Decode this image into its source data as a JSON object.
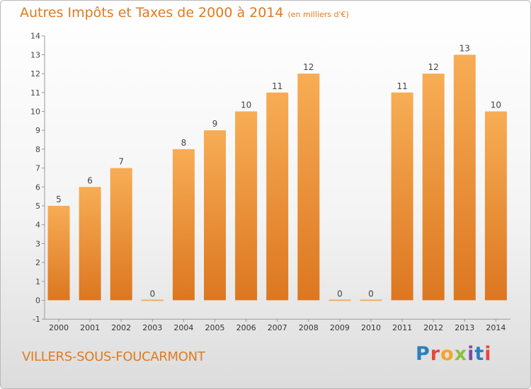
{
  "title": "Autres Impôts et Taxes de 2000 à 2014",
  "unit": "(en milliers d'€)",
  "commune": "VILLERS-SOUS-FOUCARMONT",
  "logo": "Proxiti",
  "logo_colors": [
    "#2a7fc1",
    "#e8473c",
    "#f5a623",
    "#8dbf3f",
    "#7a4fa0",
    "#2a7fc1",
    "#e8473c"
  ],
  "colors": {
    "bar_light": "#f7ad55",
    "bar_dark": "#dc7720",
    "accent": "#e07a1f"
  },
  "chart_data": {
    "type": "bar",
    "title": "Autres Impôts et Taxes de 2000 à 2014",
    "subtitle": "(en milliers d'€)",
    "categories": [
      "2000",
      "2001",
      "2002",
      "2003",
      "2004",
      "2005",
      "2006",
      "2007",
      "2008",
      "2009",
      "2010",
      "2011",
      "2012",
      "2013",
      "2014"
    ],
    "values": [
      5,
      6,
      7,
      0,
      8,
      9,
      10,
      11,
      12,
      0,
      0,
      11,
      12,
      13,
      10
    ],
    "data_labels": [
      "5",
      "6",
      "7",
      "0",
      "8",
      "9",
      "10",
      "11",
      "12",
      "0",
      "0",
      "11",
      "12",
      "13",
      "10"
    ],
    "yticks": [
      "-1",
      "0",
      "1",
      "2",
      "3",
      "4",
      "5",
      "6",
      "7",
      "8",
      "9",
      "10",
      "11",
      "12",
      "13",
      "14"
    ],
    "ylim": [
      -1,
      14
    ],
    "grid": false
  }
}
